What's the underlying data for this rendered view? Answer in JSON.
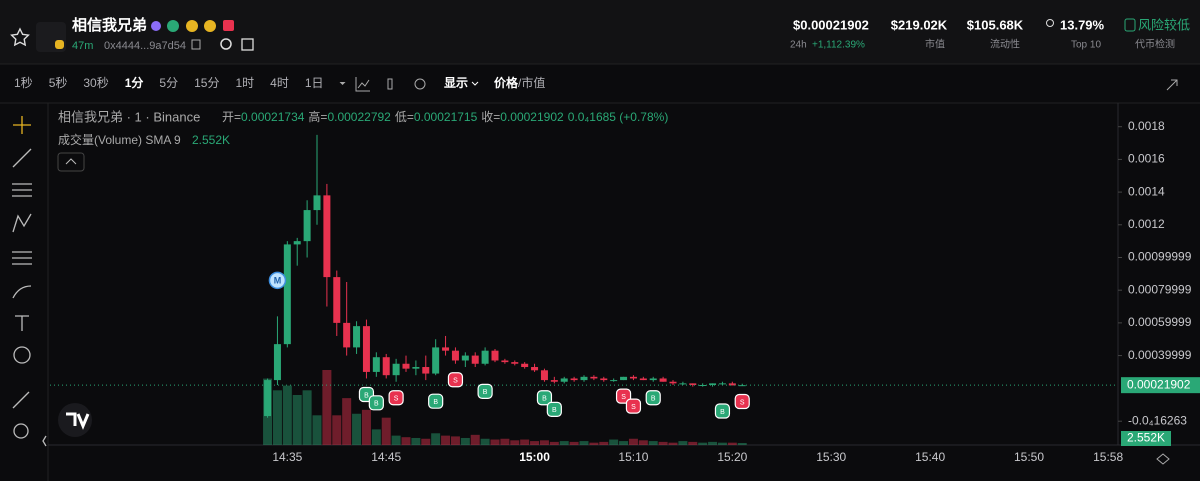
{
  "header": {
    "token_name": "相信我兄弟",
    "age": "47m",
    "address": "0x4444...9a7d54",
    "price": "$0.00021902",
    "change_period": "24h",
    "change": "+1,112.39%",
    "market_cap": "$219.02K",
    "market_cap_label": "市值",
    "liquidity": "$105.68K",
    "liquidity_label": "流动性",
    "holders_pct": "13.79%",
    "holders_label": "Top 10",
    "risk": "风险较低",
    "risk_label": "代币检测"
  },
  "toolbar": {
    "intervals": [
      "1秒",
      "5秒",
      "30秒",
      "1分",
      "5分",
      "15分",
      "1时",
      "4时",
      "1日"
    ],
    "active_interval": 3,
    "display": "显示",
    "price": "价格",
    "market_cap": "/市值"
  },
  "chart_data": {
    "type": "candlestick",
    "title": "相信我兄弟 · 1 · Binance",
    "ohlc_legend": [
      {
        "label": "开=",
        "value": "0.00021734"
      },
      {
        "label": "高=",
        "value": "0.00022792"
      },
      {
        "label": "低=",
        "value": "0.00021715"
      },
      {
        "label": "收=",
        "value": "0.00021902"
      }
    ],
    "change": "0.0₄1685 (+0.78%)",
    "volume_title": "成交量(Volume) SMA 9",
    "volume_label": "2.552K",
    "up_color": "#2aa876",
    "down_color": "#e8324f",
    "x": [
      "14:33",
      "14:34",
      "14:35",
      "14:36",
      "14:37",
      "14:38",
      "14:39",
      "14:40",
      "14:41",
      "14:42",
      "14:43",
      "14:44",
      "14:45",
      "14:46",
      "14:47",
      "14:48",
      "14:49",
      "14:50",
      "14:51",
      "14:52",
      "14:53",
      "14:54",
      "14:55",
      "14:56",
      "14:57",
      "14:58",
      "14:59",
      "15:00",
      "15:01",
      "15:02",
      "15:03",
      "15:04",
      "15:05",
      "15:06",
      "15:07",
      "15:08",
      "15:09",
      "15:10",
      "15:11",
      "15:12",
      "15:13",
      "15:14",
      "15:15",
      "15:16",
      "15:17",
      "15:18",
      "15:19",
      "15:20",
      "15:21"
    ],
    "open": [
      3e-05,
      0.00025,
      0.00047,
      0.00108,
      0.0011,
      0.00129,
      0.00138,
      0.00088,
      0.0006,
      0.00045,
      0.00058,
      0.0003,
      0.00039,
      0.00028,
      0.00035,
      0.00032,
      0.00033,
      0.00029,
      0.00045,
      0.00043,
      0.00037,
      0.0004,
      0.00035,
      0.00043,
      0.00037,
      0.00036,
      0.00035,
      0.00033,
      0.00031,
      0.00025,
      0.00024,
      0.00026,
      0.00025,
      0.00027,
      0.00026,
      0.00025,
      0.00025,
      0.00027,
      0.00026,
      0.00025,
      0.00026,
      0.00024,
      0.00023,
      0.00023,
      0.00022,
      0.00022,
      0.00023,
      0.00023,
      0.00021734
    ],
    "high": [
      0.00026,
      0.00064,
      0.0011,
      0.00112,
      0.00135,
      0.00175,
      0.00145,
      0.00092,
      0.00085,
      0.00061,
      0.00062,
      0.00042,
      0.00041,
      0.00038,
      0.0004,
      0.00037,
      0.0004,
      0.0005,
      0.00052,
      0.00045,
      0.00042,
      0.00042,
      0.00045,
      0.00044,
      0.00038,
      0.00037,
      0.00036,
      0.00035,
      0.00032,
      0.00027,
      0.00027,
      0.00027,
      0.00028,
      0.00028,
      0.00027,
      0.00026,
      0.00027,
      0.00028,
      0.00027,
      0.00027,
      0.00027,
      0.00025,
      0.00024,
      0.00023,
      0.00023,
      0.00023,
      0.00024,
      0.00024,
      0.00022792
    ],
    "low": [
      2e-05,
      0.00022,
      0.00045,
      0.00095,
      0.001,
      0.0012,
      0.0007,
      0.00052,
      0.0004,
      0.00041,
      0.00026,
      0.00027,
      0.00026,
      0.00024,
      0.0003,
      0.00028,
      0.00025,
      0.00028,
      0.0004,
      0.00035,
      0.00033,
      0.00033,
      0.00034,
      0.00036,
      0.00035,
      0.00034,
      0.00032,
      0.0003,
      0.00024,
      0.00023,
      0.00023,
      0.00024,
      0.00024,
      0.00025,
      0.00024,
      0.00024,
      0.00025,
      0.00025,
      0.00025,
      0.00024,
      0.00024,
      0.00022,
      0.00022,
      0.00021,
      0.00021,
      0.00021,
      0.00022,
      0.00022,
      0.00021715
    ],
    "close": [
      0.00025,
      0.00047,
      0.00108,
      0.0011,
      0.00129,
      0.00138,
      0.00088,
      0.0006,
      0.00045,
      0.00058,
      0.0003,
      0.00039,
      0.00028,
      0.00035,
      0.00032,
      0.00033,
      0.00029,
      0.00045,
      0.00043,
      0.00037,
      0.0004,
      0.00035,
      0.00043,
      0.00037,
      0.00036,
      0.00035,
      0.00033,
      0.00031,
      0.00025,
      0.00024,
      0.00026,
      0.00025,
      0.00027,
      0.00026,
      0.00025,
      0.00025,
      0.00027,
      0.00026,
      0.00025,
      0.00026,
      0.00024,
      0.00023,
      0.00023,
      0.00022,
      0.00022,
      0.00023,
      0.00023,
      0.00021734,
      0.00021902
    ],
    "volume": [
      85000,
      70000,
      76000,
      64000,
      70000,
      38000,
      96000,
      38000,
      60000,
      40000,
      45000,
      20000,
      35000,
      12000,
      10000,
      9000,
      8000,
      15000,
      12000,
      11000,
      9000,
      13000,
      8000,
      7000,
      8000,
      6000,
      7000,
      5000,
      6000,
      4000,
      5000,
      4000,
      5000,
      3000,
      4000,
      7000,
      5000,
      8000,
      6000,
      5000,
      4000,
      3000,
      5000,
      4000,
      3000,
      4000,
      3000,
      3000,
      2552
    ],
    "trade_markers": [
      {
        "x": "14:43",
        "label": "B"
      },
      {
        "x": "14:44",
        "label": "B"
      },
      {
        "x": "14:46",
        "label": "S"
      },
      {
        "x": "14:50",
        "label": "B"
      },
      {
        "x": "14:52",
        "label": "S"
      },
      {
        "x": "14:55",
        "label": "B"
      },
      {
        "x": "15:01",
        "label": "B"
      },
      {
        "x": "15:02",
        "label": "B"
      },
      {
        "x": "15:09",
        "label": "S"
      },
      {
        "x": "15:10",
        "label": "S"
      },
      {
        "x": "15:12",
        "label": "B"
      },
      {
        "x": "15:19",
        "label": "B"
      },
      {
        "x": "15:21",
        "label": "S"
      }
    ],
    "event_markers": [
      {
        "x": "14:34",
        "label": "M"
      }
    ],
    "xlim": [
      "14:11",
      "15:59"
    ],
    "xticks": [
      "14:35",
      "14:45",
      "15:00",
      "15:10",
      "15:20",
      "15:30",
      "15:40",
      "15:50",
      "15:58"
    ],
    "ylim": [
      -0.000147,
      0.001945
    ],
    "yticks": [
      0.0018,
      0.0016,
      0.0014,
      0.0012,
      0.00099999,
      0.00079999,
      0.00059999,
      0.00039999,
      {
        "value": -1.6263e-06,
        "label": "-0.0₄16263"
      }
    ]
  }
}
